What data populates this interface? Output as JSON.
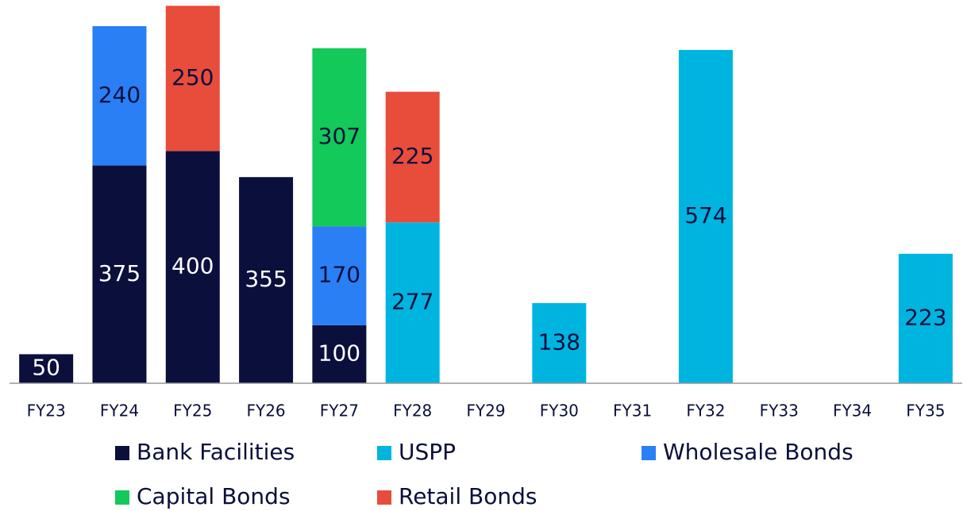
{
  "chart_data": {
    "type": "stacked_bar",
    "categories": [
      "FY23",
      "FY24",
      "FY25",
      "FY26",
      "FY27",
      "FY28",
      "FY29",
      "FY30",
      "FY31",
      "FY32",
      "FY33",
      "FY34",
      "FY35"
    ],
    "series": [
      {
        "name": "Bank Facilities",
        "color": "#0a0f3c",
        "values": [
          50,
          375,
          400,
          355,
          100,
          null,
          null,
          null,
          null,
          null,
          null,
          null,
          null
        ]
      },
      {
        "name": "USPP",
        "color": "#00b4e0",
        "values": [
          null,
          null,
          null,
          null,
          null,
          277,
          null,
          138,
          null,
          574,
          null,
          null,
          223
        ]
      },
      {
        "name": "Wholesale Bonds",
        "color": "#2a7ff5",
        "values": [
          null,
          240,
          null,
          null,
          170,
          null,
          null,
          null,
          null,
          null,
          null,
          null,
          null
        ]
      },
      {
        "name": "Capital Bonds",
        "color": "#12c95a",
        "values": [
          null,
          null,
          null,
          null,
          307,
          null,
          null,
          null,
          null,
          null,
          null,
          null,
          null
        ]
      },
      {
        "name": "Retail Bonds",
        "color": "#e84c3a",
        "values": [
          null,
          null,
          250,
          null,
          null,
          225,
          null,
          null,
          null,
          null,
          null,
          null,
          null
        ]
      }
    ],
    "ylim": [
      0,
      660
    ],
    "legend": "bottom"
  }
}
